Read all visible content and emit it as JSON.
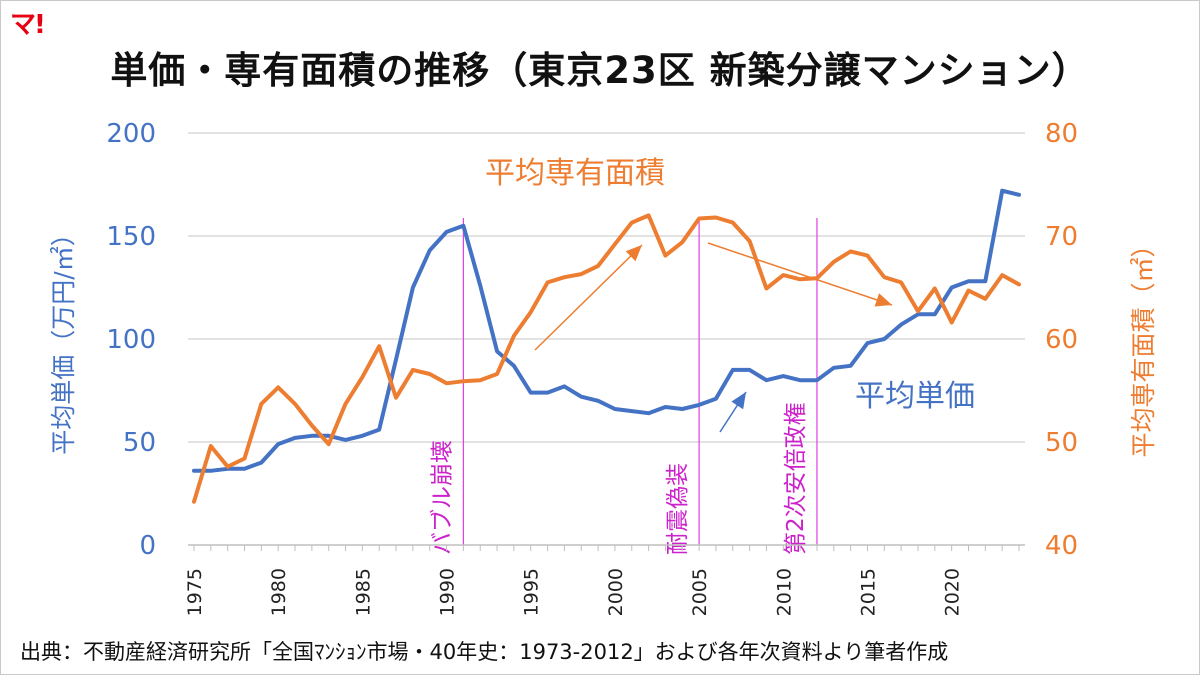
{
  "logo": "マ!",
  "title": "単価・専有面積の推移（東京23区 新築分譲マンション）",
  "source": "出典：不動産経済研究所「全国ﾏﾝｼｮﾝ市場・40年史：1973-2012」および各年次資料より筆者作成",
  "colors": {
    "price": "#4472c4",
    "area": "#ed7d31",
    "event": "#e040e0",
    "grid": "#d9d9d9"
  },
  "chart_data": {
    "type": "line",
    "x": [
      1975,
      1976,
      1977,
      1978,
      1979,
      1980,
      1981,
      1982,
      1983,
      1984,
      1985,
      1986,
      1987,
      1988,
      1989,
      1990,
      1991,
      1992,
      1993,
      1994,
      1995,
      1996,
      1997,
      1998,
      1999,
      2000,
      2001,
      2002,
      2003,
      2004,
      2005,
      2006,
      2007,
      2008,
      2009,
      2010,
      2011,
      2012,
      2013,
      2014,
      2015,
      2016,
      2017,
      2018,
      2019,
      2020,
      2021,
      2022,
      2023,
      2024
    ],
    "xticks": [
      "1975",
      "1980",
      "1985",
      "1990",
      "1995",
      "2000",
      "2005",
      "2010",
      "2015",
      "2020"
    ],
    "y_left": {
      "label": "平均単価（万円/㎡）",
      "ylim": [
        0,
        200
      ],
      "ticks": [
        "0",
        "50",
        "100",
        "150",
        "200"
      ]
    },
    "y_right": {
      "label": "平均専有面積（㎡）",
      "ylim": [
        40,
        80
      ],
      "ticks": [
        "40",
        "50",
        "60",
        "70",
        "80"
      ]
    },
    "grid": true,
    "series": [
      {
        "name": "平均単価",
        "axis": "left",
        "values": [
          36,
          36,
          37,
          37,
          40,
          49,
          52,
          53,
          53,
          51,
          53,
          56,
          90,
          125,
          143,
          152,
          155,
          126,
          94,
          87,
          74,
          74,
          77,
          72,
          70,
          66,
          65,
          64,
          67,
          66,
          68,
          71,
          85,
          85,
          80,
          82,
          80,
          80,
          86,
          87,
          98,
          100,
          107,
          112,
          112,
          125,
          128,
          128,
          172,
          170
        ]
      },
      {
        "name": "平均専有面積",
        "axis": "right",
        "values": [
          44.2,
          49.6,
          47.6,
          48.4,
          53.7,
          55.3,
          53.7,
          51.6,
          49.8,
          53.7,
          56.3,
          59.3,
          54.3,
          57.0,
          56.6,
          55.7,
          55.9,
          56.0,
          56.6,
          60.3,
          62.6,
          65.5,
          66.0,
          66.3,
          67.1,
          69.2,
          71.3,
          72.0,
          68.1,
          69.4,
          71.7,
          71.8,
          71.3,
          69.5,
          64.9,
          66.2,
          65.8,
          65.9,
          67.5,
          68.5,
          68.1,
          66.0,
          65.5,
          62.7,
          64.9,
          61.6,
          64.7,
          63.9,
          66.2,
          65.3
        ]
      }
    ],
    "events": [
      {
        "x": 1991,
        "label": "バブル崩壊"
      },
      {
        "x": 2005,
        "label": "耐震偽装"
      },
      {
        "x": 2012,
        "label": "第2次安倍政権"
      }
    ],
    "annotations": {
      "area_label": "平均専有面積",
      "price_label": "平均単価"
    }
  }
}
